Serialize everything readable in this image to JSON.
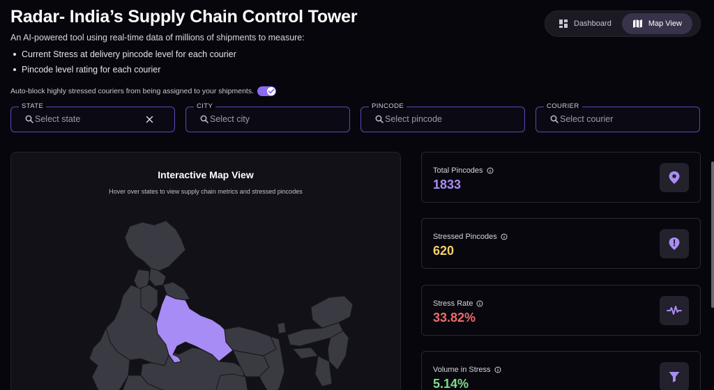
{
  "header": {
    "title": "Radar- India’s Supply Chain Control Tower",
    "subtitle": "An AI-powered tool using real-time data of millions of shipments to measure:",
    "bullets": [
      "Current Stress at delivery pincode level for each courier",
      "Pincode level rating for each courier"
    ],
    "autoblock_label": "Auto-block highly stressed couriers from being assigned to your shipments.",
    "autoblock_enabled": true
  },
  "view_switch": {
    "dashboard_label": "Dashboard",
    "map_label": "Map View",
    "active": "Map View"
  },
  "filters": [
    {
      "label": "STATE",
      "placeholder": "Select state",
      "value": "",
      "clearable": true
    },
    {
      "label": "CITY",
      "placeholder": "Select city",
      "value": "",
      "clearable": false
    },
    {
      "label": "PINCODE",
      "placeholder": "Select pincode",
      "value": "",
      "clearable": false
    },
    {
      "label": "COURIER",
      "placeholder": "Select courier",
      "value": "",
      "clearable": false
    }
  ],
  "map": {
    "title": "Interactive Map View",
    "subtitle": "Hover over states to view supply chain metrics and stressed pincodes",
    "highlighted_state_color": "#a88cf5",
    "state_fill": "#3a3a42"
  },
  "stats": [
    {
      "label": "Total Pincodes",
      "value": "1833",
      "color": "#a98df2",
      "icon": "map-pin-icon"
    },
    {
      "label": "Stressed Pincodes",
      "value": "620",
      "color": "#f5d06a",
      "icon": "alert-pin-icon"
    },
    {
      "label": "Stress Rate",
      "value": "33.82%",
      "color": "#f06a6a",
      "icon": "pulse-icon"
    },
    {
      "label": "Volume in Stress",
      "value": "5.14%",
      "color": "#7fdc8a",
      "icon": "funnel-icon"
    }
  ],
  "colors": {
    "accent": "#8b6cf0",
    "background": "#07060d"
  }
}
